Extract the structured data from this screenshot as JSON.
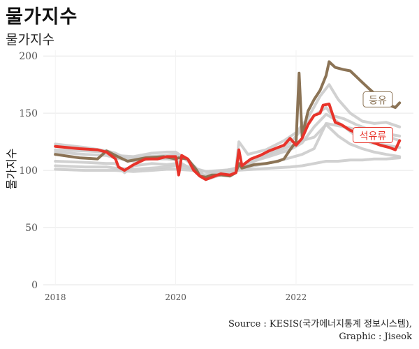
{
  "title": "물가지수",
  "subtitle": "물가지수",
  "caption": {
    "line1": "Source : KESIS(국가에너지통계 정보시스템),",
    "line2": "Graphic : Jiseok"
  },
  "colors": {
    "background_series": "#cccccc",
    "kerosene": "#8b7355",
    "petroleum": "#e8332a",
    "grid": "#e6e6e6"
  },
  "chart_data": {
    "type": "line",
    "title": "",
    "xlabel": "",
    "ylabel": "물가지수",
    "xlim": [
      2017.8,
      2023.95
    ],
    "ylim": [
      0,
      205
    ],
    "x_ticks": [
      2018,
      2020,
      2022
    ],
    "y_ticks": [
      0,
      50,
      100,
      150,
      200
    ],
    "grid": true,
    "legend": "direct labels at line ends",
    "series": [
      {
        "name": "등유",
        "highlight": true,
        "points": [
          [
            2018.0,
            114
          ],
          [
            2018.4,
            111
          ],
          [
            2018.7,
            110
          ],
          [
            2018.85,
            117
          ],
          [
            2019.0,
            113
          ],
          [
            2019.2,
            108
          ],
          [
            2019.5,
            111
          ],
          [
            2019.8,
            112
          ],
          [
            2020.0,
            110
          ],
          [
            2020.05,
            111
          ],
          [
            2020.2,
            110
          ],
          [
            2020.35,
            100
          ],
          [
            2020.4,
            95
          ],
          [
            2020.5,
            94
          ],
          [
            2020.6,
            96
          ],
          [
            2020.75,
            96
          ],
          [
            2020.9,
            95
          ],
          [
            2021.0,
            98
          ],
          [
            2021.05,
            106
          ],
          [
            2021.1,
            102
          ],
          [
            2021.3,
            105
          ],
          [
            2021.5,
            106
          ],
          [
            2021.7,
            108
          ],
          [
            2021.8,
            110
          ],
          [
            2021.9,
            118
          ],
          [
            2022.0,
            125
          ],
          [
            2022.05,
            185
          ],
          [
            2022.1,
            130
          ],
          [
            2022.2,
            152
          ],
          [
            2022.3,
            162
          ],
          [
            2022.4,
            170
          ],
          [
            2022.5,
            183
          ],
          [
            2022.55,
            195
          ],
          [
            2022.65,
            190
          ],
          [
            2022.8,
            188
          ],
          [
            2022.9,
            187
          ],
          [
            2023.0,
            182
          ],
          [
            2023.1,
            177
          ],
          [
            2023.2,
            172
          ],
          [
            2023.35,
            165
          ],
          [
            2023.45,
            160
          ],
          [
            2023.55,
            157
          ],
          [
            2023.65,
            155
          ],
          [
            2023.72,
            159
          ]
        ]
      },
      {
        "name": "석유류",
        "highlight": true,
        "points": [
          [
            2018.0,
            121
          ],
          [
            2018.4,
            119
          ],
          [
            2018.7,
            118
          ],
          [
            2018.85,
            116
          ],
          [
            2019.0,
            110
          ],
          [
            2019.05,
            103
          ],
          [
            2019.15,
            100
          ],
          [
            2019.3,
            105
          ],
          [
            2019.5,
            110
          ],
          [
            2019.7,
            110
          ],
          [
            2019.85,
            112
          ],
          [
            2020.0,
            112
          ],
          [
            2020.05,
            96
          ],
          [
            2020.1,
            113
          ],
          [
            2020.2,
            110
          ],
          [
            2020.3,
            100
          ],
          [
            2020.4,
            95
          ],
          [
            2020.5,
            92
          ],
          [
            2020.6,
            94
          ],
          [
            2020.75,
            97
          ],
          [
            2020.9,
            96
          ],
          [
            2021.0,
            98
          ],
          [
            2021.05,
            118
          ],
          [
            2021.1,
            104
          ],
          [
            2021.25,
            110
          ],
          [
            2021.4,
            113
          ],
          [
            2021.55,
            117
          ],
          [
            2021.7,
            120
          ],
          [
            2021.8,
            122
          ],
          [
            2021.9,
            128
          ],
          [
            2022.0,
            122
          ],
          [
            2022.1,
            128
          ],
          [
            2022.2,
            140
          ],
          [
            2022.3,
            148
          ],
          [
            2022.4,
            150
          ],
          [
            2022.45,
            157
          ],
          [
            2022.55,
            158
          ],
          [
            2022.65,
            142
          ],
          [
            2022.75,
            140
          ],
          [
            2022.9,
            135
          ],
          [
            2023.0,
            133
          ],
          [
            2023.1,
            130
          ],
          [
            2023.25,
            125
          ],
          [
            2023.4,
            122
          ],
          [
            2023.55,
            120
          ],
          [
            2023.65,
            118
          ],
          [
            2023.72,
            126
          ]
        ]
      },
      {
        "name": "",
        "highlight": false,
        "points": [
          [
            2018.0,
            123
          ],
          [
            2018.5,
            120
          ],
          [
            2018.85,
            117
          ],
          [
            2019.0,
            115
          ],
          [
            2019.2,
            110
          ],
          [
            2019.5,
            112
          ],
          [
            2019.85,
            113
          ],
          [
            2020.0,
            114
          ],
          [
            2020.1,
            112
          ],
          [
            2020.3,
            104
          ],
          [
            2020.5,
            94
          ],
          [
            2020.75,
            98
          ],
          [
            2021.0,
            101
          ],
          [
            2021.05,
            125
          ],
          [
            2021.2,
            114
          ],
          [
            2021.5,
            118
          ],
          [
            2021.8,
            126
          ],
          [
            2022.0,
            133
          ],
          [
            2022.2,
            146
          ],
          [
            2022.4,
            165
          ],
          [
            2022.55,
            175
          ],
          [
            2022.7,
            162
          ],
          [
            2022.9,
            150
          ],
          [
            2023.1,
            143
          ],
          [
            2023.3,
            141
          ],
          [
            2023.5,
            142
          ],
          [
            2023.72,
            138
          ]
        ]
      },
      {
        "name": "",
        "highlight": false,
        "points": [
          [
            2018.0,
            118
          ],
          [
            2018.5,
            117
          ],
          [
            2018.85,
            116
          ],
          [
            2019.0,
            113
          ],
          [
            2019.3,
            112
          ],
          [
            2019.6,
            115
          ],
          [
            2019.85,
            116
          ],
          [
            2020.0,
            116
          ],
          [
            2020.2,
            109
          ],
          [
            2020.45,
            96
          ],
          [
            2020.75,
            98
          ],
          [
            2021.0,
            102
          ],
          [
            2021.3,
            109
          ],
          [
            2021.6,
            116
          ],
          [
            2021.9,
            124
          ],
          [
            2022.1,
            136
          ],
          [
            2022.3,
            148
          ],
          [
            2022.5,
            155
          ],
          [
            2022.6,
            148
          ],
          [
            2022.8,
            145
          ],
          [
            2023.0,
            140
          ],
          [
            2023.25,
            135
          ],
          [
            2023.5,
            132
          ],
          [
            2023.72,
            130
          ]
        ]
      },
      {
        "name": "",
        "highlight": false,
        "points": [
          [
            2018.0,
            108
          ],
          [
            2018.5,
            107
          ],
          [
            2018.85,
            106
          ],
          [
            2019.0,
            106
          ],
          [
            2019.15,
            98
          ],
          [
            2019.3,
            104
          ],
          [
            2019.6,
            106
          ],
          [
            2019.85,
            105
          ],
          [
            2020.0,
            106
          ],
          [
            2020.3,
            102
          ],
          [
            2020.5,
            99
          ],
          [
            2020.75,
            99
          ],
          [
            2021.0,
            102
          ],
          [
            2021.3,
            108
          ],
          [
            2021.6,
            113
          ],
          [
            2021.9,
            118
          ],
          [
            2022.1,
            124
          ],
          [
            2022.3,
            138
          ],
          [
            2022.5,
            149
          ],
          [
            2022.6,
            146
          ],
          [
            2022.8,
            138
          ],
          [
            2023.0,
            130
          ],
          [
            2023.25,
            124
          ],
          [
            2023.5,
            122
          ],
          [
            2023.72,
            120
          ]
        ]
      },
      {
        "name": "",
        "highlight": false,
        "points": [
          [
            2018.0,
            104
          ],
          [
            2018.5,
            103
          ],
          [
            2018.85,
            103
          ],
          [
            2019.0,
            102
          ],
          [
            2019.3,
            101
          ],
          [
            2019.6,
            102
          ],
          [
            2019.85,
            103
          ],
          [
            2020.0,
            104
          ],
          [
            2020.3,
            101
          ],
          [
            2020.5,
            99
          ],
          [
            2020.75,
            100
          ],
          [
            2021.0,
            101
          ],
          [
            2021.3,
            104
          ],
          [
            2021.6,
            107
          ],
          [
            2021.9,
            111
          ],
          [
            2022.1,
            114
          ],
          [
            2022.3,
            119
          ],
          [
            2022.5,
            141
          ],
          [
            2022.7,
            139
          ],
          [
            2022.9,
            137
          ],
          [
            2023.1,
            134
          ],
          [
            2023.3,
            132
          ],
          [
            2023.5,
            130
          ],
          [
            2023.72,
            126
          ]
        ]
      },
      {
        "name": "",
        "highlight": false,
        "points": [
          [
            2018.0,
            101
          ],
          [
            2018.5,
            100
          ],
          [
            2018.85,
            100
          ],
          [
            2019.0,
            100
          ],
          [
            2019.3,
            99
          ],
          [
            2019.6,
            100
          ],
          [
            2019.85,
            101
          ],
          [
            2020.0,
            101
          ],
          [
            2020.3,
            100
          ],
          [
            2020.5,
            99
          ],
          [
            2020.75,
            99
          ],
          [
            2021.0,
            100
          ],
          [
            2021.3,
            101
          ],
          [
            2021.6,
            102
          ],
          [
            2021.9,
            103
          ],
          [
            2022.1,
            104
          ],
          [
            2022.3,
            106
          ],
          [
            2022.5,
            108
          ],
          [
            2022.7,
            108
          ],
          [
            2022.9,
            109
          ],
          [
            2023.1,
            109
          ],
          [
            2023.3,
            110
          ],
          [
            2023.5,
            110
          ],
          [
            2023.72,
            111
          ]
        ]
      },
      {
        "name": "",
        "highlight": false,
        "points": [
          [
            2018.0,
            116
          ],
          [
            2018.5,
            114
          ],
          [
            2018.85,
            113
          ],
          [
            2019.0,
            111
          ],
          [
            2019.3,
            108
          ],
          [
            2019.6,
            110
          ],
          [
            2019.85,
            110
          ],
          [
            2020.0,
            109
          ],
          [
            2020.3,
            100
          ],
          [
            2020.5,
            92
          ],
          [
            2020.75,
            96
          ],
          [
            2021.0,
            99
          ],
          [
            2021.3,
            108
          ],
          [
            2021.6,
            115
          ],
          [
            2021.9,
            121
          ],
          [
            2022.1,
            126
          ],
          [
            2022.3,
            129
          ],
          [
            2022.5,
            140
          ],
          [
            2022.7,
            130
          ],
          [
            2022.9,
            123
          ],
          [
            2023.1,
            119
          ],
          [
            2023.3,
            116
          ],
          [
            2023.5,
            114
          ],
          [
            2023.72,
            112
          ]
        ]
      }
    ],
    "annotations": [
      {
        "text": "등유",
        "series": "등유"
      },
      {
        "text": "석유류",
        "series": "석유류"
      }
    ]
  }
}
